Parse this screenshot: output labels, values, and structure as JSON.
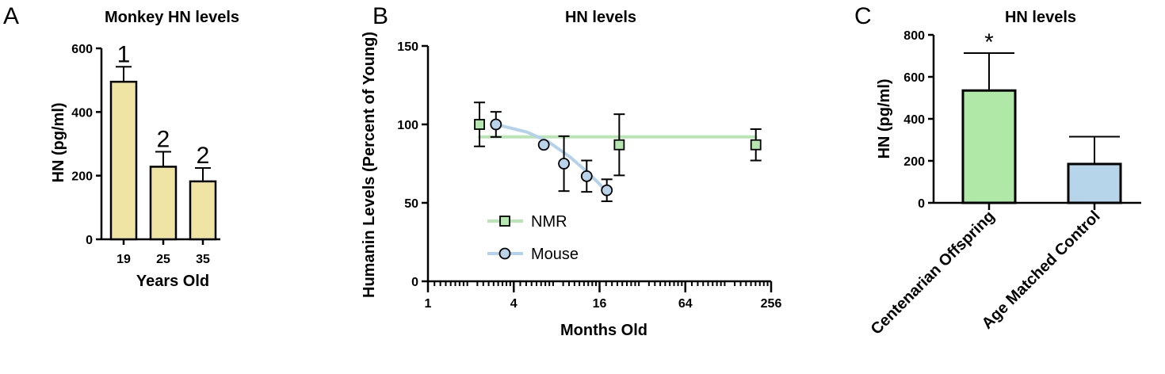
{
  "chart_data": [
    {
      "panel": "A",
      "type": "bar",
      "title": "Monkey HN levels",
      "xlabel": "Years Old",
      "ylabel": "HN (pg/ml)",
      "categories": [
        "19",
        "25",
        "35"
      ],
      "values": [
        495,
        228,
        182
      ],
      "errors": [
        47,
        47,
        42
      ],
      "annotations": [
        "1",
        "2",
        "2"
      ],
      "ylim": [
        0,
        600
      ],
      "yticks": [
        "0",
        "200",
        "400",
        "600"
      ],
      "colors": {
        "bar": "#f0e4a4",
        "edge": "#000000"
      }
    },
    {
      "panel": "B",
      "type": "line",
      "title": "HN levels",
      "xlabel": "Months Old",
      "ylabel": "Humanin Levels (Percent of Young)",
      "xscale": "log2",
      "xlim": [
        1,
        256
      ],
      "ylim": [
        0,
        150
      ],
      "xticks": [
        "1",
        "4",
        "16",
        "64",
        "256"
      ],
      "yticks": [
        "0",
        "50",
        "100",
        "150"
      ],
      "legend": "lower-left",
      "series": [
        {
          "name": "NMR",
          "marker": "square",
          "color": "#b5e6b0",
          "line_color": "#b8e6b3",
          "points": [
            {
              "x": 2.3,
              "y": 100,
              "err": 14
            },
            {
              "x": 22,
              "y": 87,
              "err": 19.5
            },
            {
              "x": 200,
              "y": 87,
              "err": 10
            }
          ],
          "fit": [
            [
              2.3,
              92
            ],
            [
              200,
              92
            ]
          ]
        },
        {
          "name": "Mouse",
          "marker": "circle",
          "color": "#b9d4ea",
          "line_color": "#b4d2ea",
          "points": [
            {
              "x": 3,
              "y": 100,
              "err": 8
            },
            {
              "x": 6.5,
              "y": 87,
              "err": 0
            },
            {
              "x": 9,
              "y": 75,
              "err": 17.5
            },
            {
              "x": 13,
              "y": 67,
              "err": 10
            },
            {
              "x": 18,
              "y": 58,
              "err": 7
            }
          ],
          "fit": [
            [
              3,
              100
            ],
            [
              5,
              95
            ],
            [
              7,
              89
            ],
            [
              10,
              79
            ],
            [
              13,
              70
            ],
            [
              16,
              62
            ],
            [
              18,
              56.5
            ]
          ]
        }
      ]
    },
    {
      "panel": "C",
      "type": "bar",
      "title": "HN levels",
      "xlabel": "",
      "ylabel": "HN (pg/ml)",
      "categories": [
        "Centenarian Offspring",
        "Age Matched Control"
      ],
      "values": [
        535,
        185
      ],
      "errors": [
        178,
        130
      ],
      "annotations": [
        "*",
        ""
      ],
      "ylim": [
        0,
        800
      ],
      "yticks": [
        "0",
        "200",
        "400",
        "600",
        "800"
      ],
      "colors": {
        "bars": [
          "#b0e8a8",
          "#b6d4ea"
        ],
        "edge": "#000000"
      }
    }
  ]
}
